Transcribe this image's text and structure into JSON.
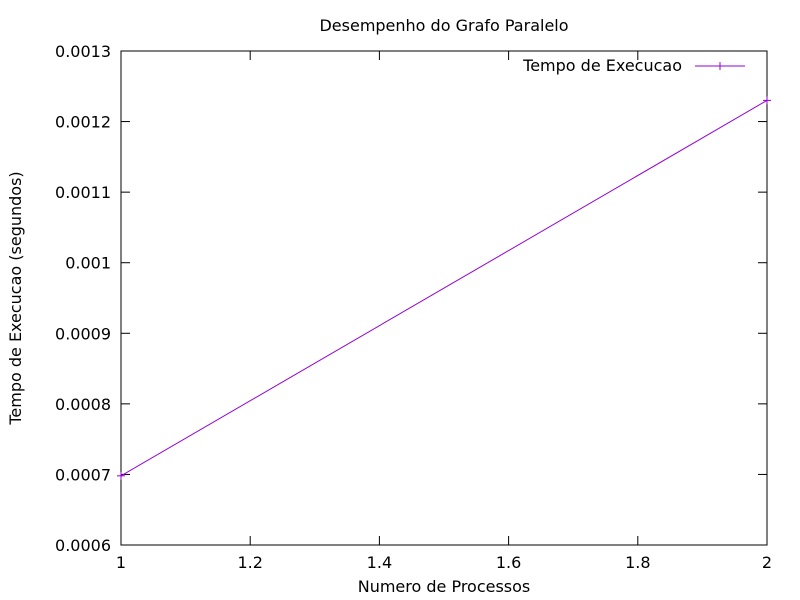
{
  "chart_data": {
    "type": "line",
    "title": "Desempenho do Grafo Paralelo",
    "xlabel": "Numero de Processos",
    "ylabel": "Tempo de Execucao (segundos)",
    "xlim": [
      1,
      2
    ],
    "ylim": [
      0.0006,
      0.0013
    ],
    "xticks": [
      "1",
      "1.2",
      "1.4",
      "1.6",
      "1.8",
      "2"
    ],
    "xtick_values": [
      1,
      1.2,
      1.4,
      1.6,
      1.8,
      2
    ],
    "yticks": [
      "0.0006",
      "0.0007",
      "0.0008",
      "0.0009",
      "0.001",
      "0.0011",
      "0.0012",
      "0.0013"
    ],
    "ytick_values": [
      0.0006,
      0.0007,
      0.0008,
      0.0009,
      0.001,
      0.0011,
      0.0012,
      0.0013
    ],
    "grid": false,
    "legend_position": "top-right",
    "series": [
      {
        "name": "Tempo de Execucao",
        "color": "#9400d3",
        "marker": "plus",
        "x": [
          1,
          2
        ],
        "y": [
          0.000698,
          0.00123
        ]
      }
    ]
  }
}
